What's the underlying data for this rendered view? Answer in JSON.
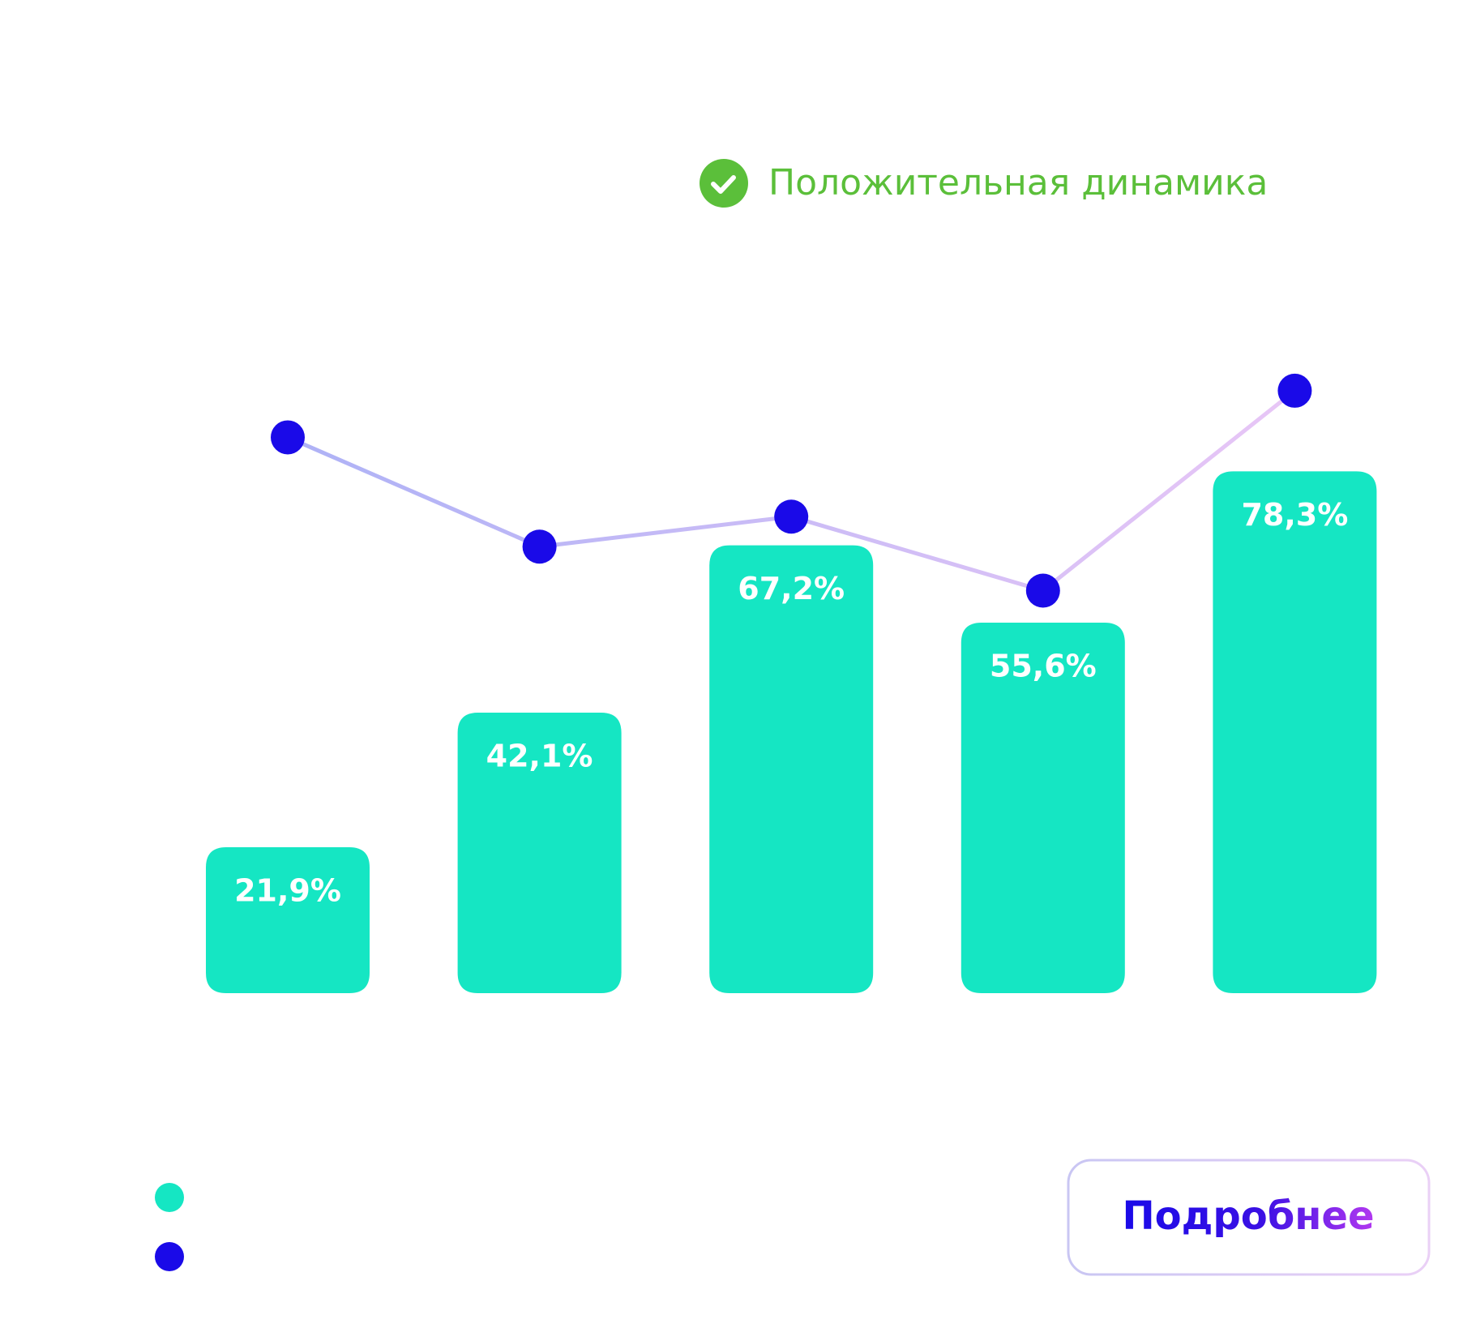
{
  "chart_data": {
    "type": "bar-line",
    "badge": "Положительная динамика",
    "button": "Подробнее",
    "ylim": [
      0,
      100
    ],
    "series": [
      {
        "type": "bar",
        "color": "#15e6c3",
        "values": [
          21.9,
          42.1,
          67.2,
          55.6,
          78.3
        ],
        "value_labels": [
          "21,9%",
          "42,1%",
          "67,2%",
          "55,6%",
          "78,3%"
        ]
      },
      {
        "type": "line",
        "color": "#1a0ae8",
        "values": [
          83.4,
          67,
          71.5,
          60.4,
          90.4
        ]
      }
    ]
  }
}
